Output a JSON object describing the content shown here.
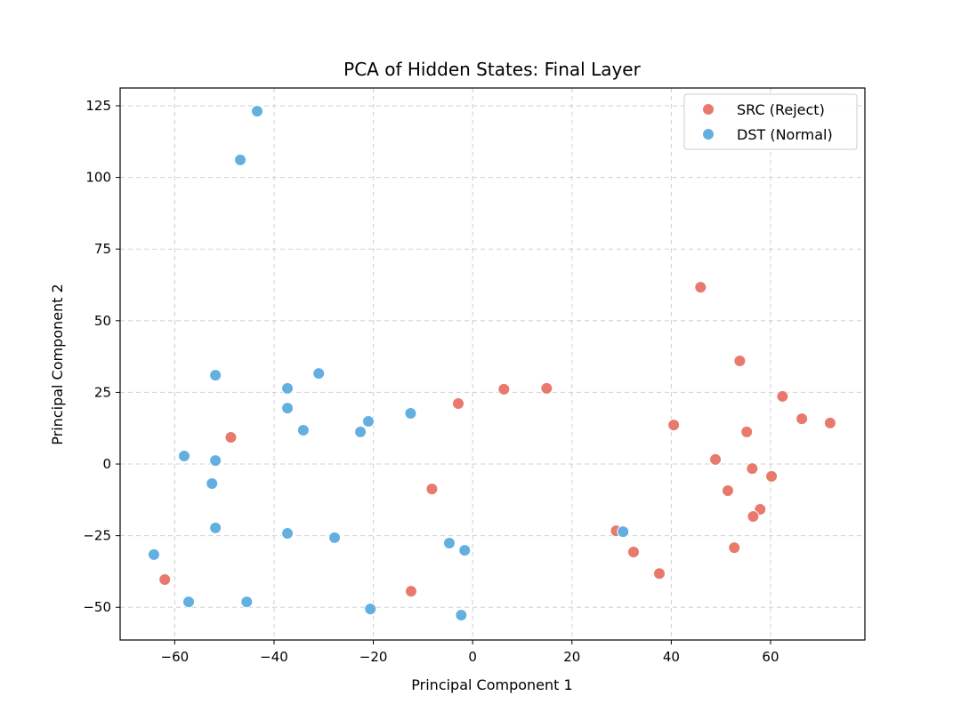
{
  "chart_data": {
    "type": "scatter",
    "title": "PCA of Hidden States: Final Layer",
    "xlabel": "Principal Component 1",
    "ylabel": "Principal Component 2",
    "xlim": [
      -71,
      79
    ],
    "ylim": [
      -61.4,
      131.2
    ],
    "xticks": [
      -60,
      -40,
      -20,
      0,
      20,
      40,
      60
    ],
    "yticks": [
      -50,
      -25,
      0,
      25,
      50,
      75,
      100,
      125
    ],
    "xtick_labels": [
      "−60",
      "−40",
      "−20",
      "0",
      "20",
      "40",
      "60"
    ],
    "ytick_labels": [
      "−50",
      "−25",
      "0",
      "25",
      "50",
      "75",
      "100",
      "125"
    ],
    "grid": true,
    "legend_position": "top-right",
    "series": [
      {
        "name": "SRC (Reject)",
        "color": "#e8796c",
        "points": [
          [
            45.9,
            61.7
          ],
          [
            53.8,
            36.0
          ],
          [
            -2.9,
            21.1
          ],
          [
            6.3,
            26.1
          ],
          [
            14.9,
            26.4
          ],
          [
            62.4,
            23.6
          ],
          [
            66.3,
            15.8
          ],
          [
            72.0,
            14.3
          ],
          [
            40.5,
            13.6
          ],
          [
            55.2,
            11.2
          ],
          [
            -48.7,
            9.3
          ],
          [
            48.9,
            1.6
          ],
          [
            56.3,
            -1.6
          ],
          [
            60.2,
            -4.3
          ],
          [
            51.4,
            -9.3
          ],
          [
            -8.2,
            -8.7
          ],
          [
            57.9,
            -15.8
          ],
          [
            56.5,
            -18.3
          ],
          [
            28.9,
            -23.3
          ],
          [
            32.4,
            -30.7
          ],
          [
            52.7,
            -29.2
          ],
          [
            37.6,
            -38.2
          ],
          [
            -62.0,
            -40.3
          ],
          [
            -12.4,
            -44.4
          ]
        ]
      },
      {
        "name": "DST (Normal)",
        "color": "#63b0e0",
        "points": [
          [
            -43.4,
            123.1
          ],
          [
            -46.8,
            106.1
          ],
          [
            -51.8,
            31.0
          ],
          [
            -31.0,
            31.6
          ],
          [
            -37.3,
            26.4
          ],
          [
            -37.3,
            19.5
          ],
          [
            -34.1,
            11.8
          ],
          [
            -21.0,
            14.9
          ],
          [
            -22.6,
            11.2
          ],
          [
            -12.5,
            17.7
          ],
          [
            -58.1,
            2.8
          ],
          [
            -51.8,
            1.2
          ],
          [
            -52.5,
            -6.8
          ],
          [
            -51.8,
            -22.3
          ],
          [
            -37.3,
            -24.2
          ],
          [
            -27.8,
            -25.7
          ],
          [
            -4.7,
            -27.6
          ],
          [
            -1.6,
            -30.1
          ],
          [
            30.3,
            -23.6
          ],
          [
            -64.2,
            -31.6
          ],
          [
            -57.2,
            -48.1
          ],
          [
            -45.5,
            -48.1
          ],
          [
            -20.6,
            -50.6
          ],
          [
            -2.3,
            -52.7
          ]
        ]
      }
    ]
  }
}
